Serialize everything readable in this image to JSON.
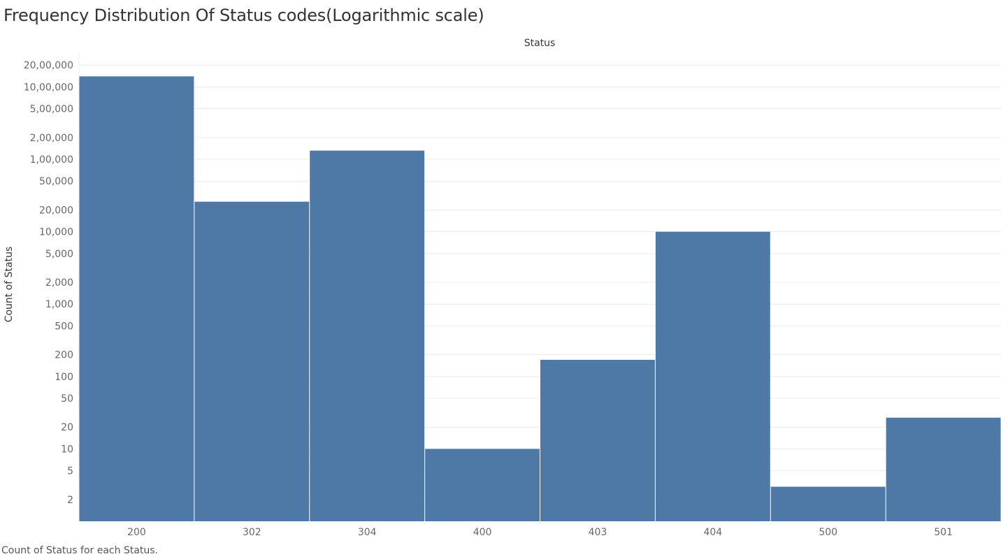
{
  "title": "Frequency Distribution Of Status codes(Logarithmic scale)",
  "caption": "Count of Status for each Status.",
  "chart_data": {
    "type": "bar",
    "header": "Status",
    "ylabel": "Count of Status",
    "yscale": "log",
    "ylim": [
      1,
      3000000
    ],
    "yticks": [
      {
        "value": 2000000,
        "label": "20,00,000"
      },
      {
        "value": 1000000,
        "label": "10,00,000"
      },
      {
        "value": 500000,
        "label": "5,00,000"
      },
      {
        "value": 200000,
        "label": "2,00,000"
      },
      {
        "value": 100000,
        "label": "1,00,000"
      },
      {
        "value": 50000,
        "label": "50,000"
      },
      {
        "value": 20000,
        "label": "20,000"
      },
      {
        "value": 10000,
        "label": "10,000"
      },
      {
        "value": 5000,
        "label": "5,000"
      },
      {
        "value": 2000,
        "label": "2,000"
      },
      {
        "value": 1000,
        "label": "1,000"
      },
      {
        "value": 500,
        "label": "500"
      },
      {
        "value": 200,
        "label": "200"
      },
      {
        "value": 100,
        "label": "100"
      },
      {
        "value": 50,
        "label": "50"
      },
      {
        "value": 20,
        "label": "20"
      },
      {
        "value": 10,
        "label": "10"
      },
      {
        "value": 5,
        "label": "5"
      },
      {
        "value": 2,
        "label": "2"
      }
    ],
    "categories": [
      "200",
      "302",
      "304",
      "400",
      "403",
      "404",
      "500",
      "501"
    ],
    "values": [
      1400000,
      26000,
      132000,
      10,
      170,
      10000,
      3,
      27
    ],
    "bar_color": "#4e79a7",
    "grid": true
  }
}
